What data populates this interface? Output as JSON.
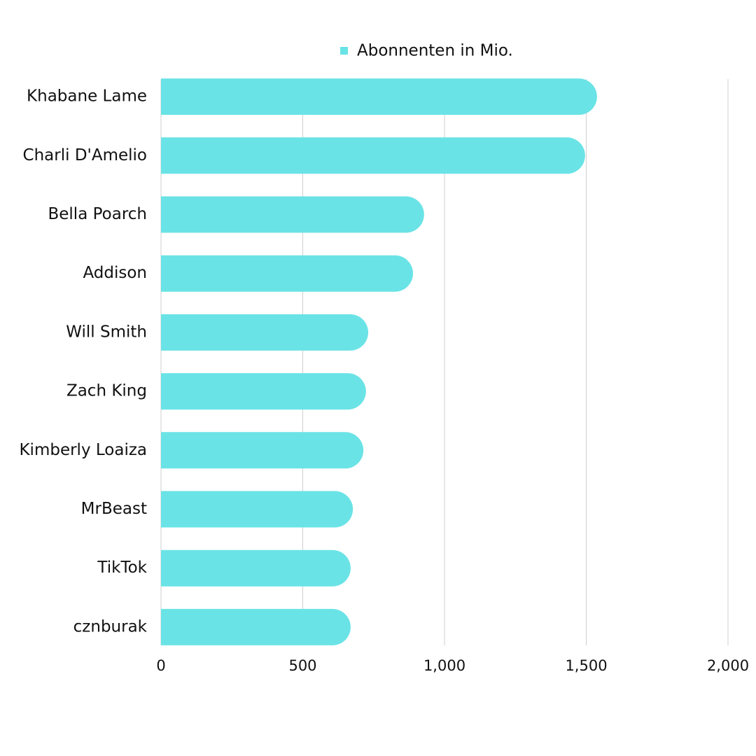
{
  "chart_data": {
    "type": "barh",
    "categories": [
      "Khabane Lame",
      "Charli D'Amelio",
      "Bella Poarch",
      "Addison",
      "Will Smith",
      "Zach King",
      "Kimberly Loaiza",
      "MrBeast",
      "TikTok",
      "cznburak"
    ],
    "series": [
      {
        "name": "Abonnenten in Mio.",
        "color": "#6ae3e6",
        "values": [
          1538,
          1496,
          928,
          889,
          731,
          723,
          714,
          677,
          669,
          669
        ]
      }
    ],
    "xlim": [
      0,
      2000
    ],
    "xticks": [
      0,
      500,
      {
        "value": 1000,
        "label": "1,000"
      },
      {
        "value": 1500,
        "label": "1,500"
      },
      {
        "value": 2000,
        "label": "2,000"
      }
    ],
    "grid": true,
    "legend": "top"
  }
}
